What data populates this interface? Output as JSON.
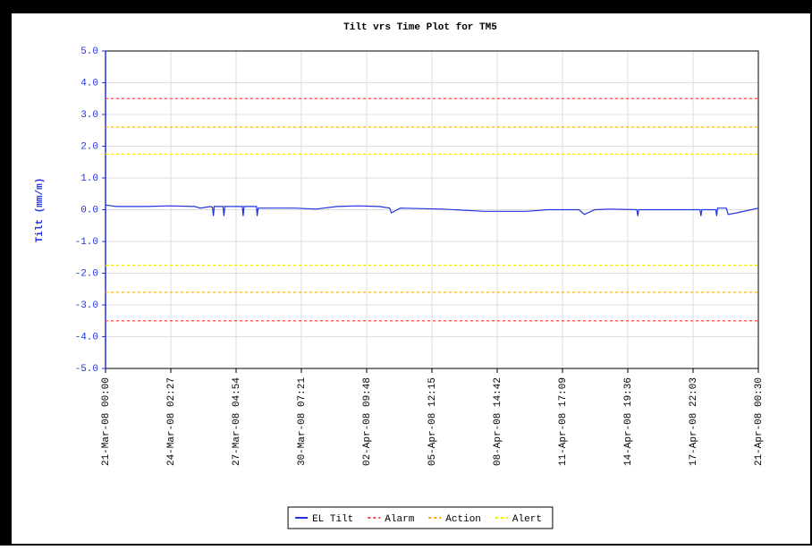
{
  "chart_data": {
    "type": "line",
    "title": "Tilt vrs Time Plot for TM5",
    "ylabel": "Tilt (mm/m)",
    "xlim": [
      "2008-03-21T00:00",
      "2008-04-21T00:30"
    ],
    "xticks": [
      {
        "value": "2008-03-21T00:00",
        "label": "21-Mar-08 00:00"
      },
      {
        "value": "2008-03-24T02:27",
        "label": "24-Mar-08 02:27"
      },
      {
        "value": "2008-03-27T04:54",
        "label": "27-Mar-08 04:54"
      },
      {
        "value": "2008-03-30T07:21",
        "label": "30-Mar-08 07:21"
      },
      {
        "value": "2008-04-02T09:48",
        "label": "02-Apr-08 09:48"
      },
      {
        "value": "2008-04-05T12:15",
        "label": "05-Apr-08 12:15"
      },
      {
        "value": "2008-04-08T14:42",
        "label": "08-Apr-08 14:42"
      },
      {
        "value": "2008-04-11T17:09",
        "label": "11-Apr-08 17:09"
      },
      {
        "value": "2008-04-14T19:36",
        "label": "14-Apr-08 19:36"
      },
      {
        "value": "2008-04-17T22:03",
        "label": "17-Apr-08 22:03"
      },
      {
        "value": "2008-04-21T00:30",
        "label": "21-Apr-08 00:30"
      }
    ],
    "ylim": [
      -5,
      5
    ],
    "yticks": [
      {
        "value": 5,
        "label": "5.0"
      },
      {
        "value": 4,
        "label": "4.0"
      },
      {
        "value": 3,
        "label": "3.0"
      },
      {
        "value": 2,
        "label": "2.0"
      },
      {
        "value": 1,
        "label": "1.0"
      },
      {
        "value": 0,
        "label": "0.0"
      },
      {
        "value": -1,
        "label": "-1.0"
      },
      {
        "value": -2,
        "label": "-2.0"
      },
      {
        "value": -3,
        "label": "-3.0"
      },
      {
        "value": -4,
        "label": "-4.0"
      },
      {
        "value": -5,
        "label": "-5.0"
      }
    ],
    "grid": true,
    "legend": "bottom",
    "series": [
      {
        "name": "EL Tilt",
        "color": "#2233dd",
        "x": [
          "2008-03-21T00:00",
          "2008-03-21T12:00",
          "2008-03-23T00:00",
          "2008-03-24T00:00",
          "2008-03-25T06:00",
          "2008-03-25T12:00",
          "2008-03-26T00:00",
          "2008-03-26T02:00",
          "2008-03-26T03:00",
          "2008-03-26T04:00",
          "2008-03-26T14:00",
          "2008-03-26T15:00",
          "2008-03-26T16:00",
          "2008-03-27T12:00",
          "2008-03-27T13:00",
          "2008-03-27T14:00",
          "2008-03-28T04:00",
          "2008-03-28T05:00",
          "2008-03-28T06:00",
          "2008-03-29T00:00",
          "2008-03-30T00:00",
          "2008-03-31T00:00",
          "2008-04-01T00:00",
          "2008-04-02T00:00",
          "2008-04-03T00:00",
          "2008-04-03T12:00",
          "2008-04-03T14:00",
          "2008-04-04T00:00",
          "2008-04-06T00:00",
          "2008-04-08T00:00",
          "2008-04-10T00:00",
          "2008-04-11T00:00",
          "2008-04-12T12:00",
          "2008-04-12T18:00",
          "2008-04-13T06:00",
          "2008-04-14T00:00",
          "2008-04-15T06:00",
          "2008-04-15T07:00",
          "2008-04-15T08:00",
          "2008-04-17T00:00",
          "2008-04-18T06:00",
          "2008-04-18T07:00",
          "2008-04-18T08:00",
          "2008-04-19T00:00",
          "2008-04-19T01:00",
          "2008-04-19T02:00",
          "2008-04-19T12:00",
          "2008-04-19T14:00",
          "2008-04-20T00:00",
          "2008-04-21T00:30"
        ],
        "values": [
          0.15,
          0.1,
          0.1,
          0.12,
          0.1,
          0.05,
          0.1,
          0.08,
          -0.2,
          0.1,
          0.1,
          -0.2,
          0.1,
          0.1,
          -0.2,
          0.1,
          0.1,
          -0.2,
          0.05,
          0.05,
          0.05,
          0.02,
          0.1,
          0.12,
          0.1,
          0.05,
          -0.1,
          0.05,
          0.02,
          -0.05,
          -0.05,
          0.0,
          0.0,
          -0.15,
          0.0,
          0.02,
          0.0,
          -0.2,
          0.0,
          0.0,
          0.0,
          -0.2,
          0.0,
          0.0,
          -0.2,
          0.05,
          0.05,
          -0.15,
          -0.1,
          0.05
        ]
      },
      {
        "name": "Alarm",
        "color": "#ff4444",
        "style": "dashed",
        "values": [
          3.5,
          -3.5
        ]
      },
      {
        "name": "Action",
        "color": "#ffaa00",
        "style": "dashed",
        "values": [
          2.6,
          -2.6
        ]
      },
      {
        "name": "Alert",
        "color": "#eeee00",
        "style": "dashed",
        "values": [
          1.75,
          -1.75
        ]
      }
    ]
  }
}
